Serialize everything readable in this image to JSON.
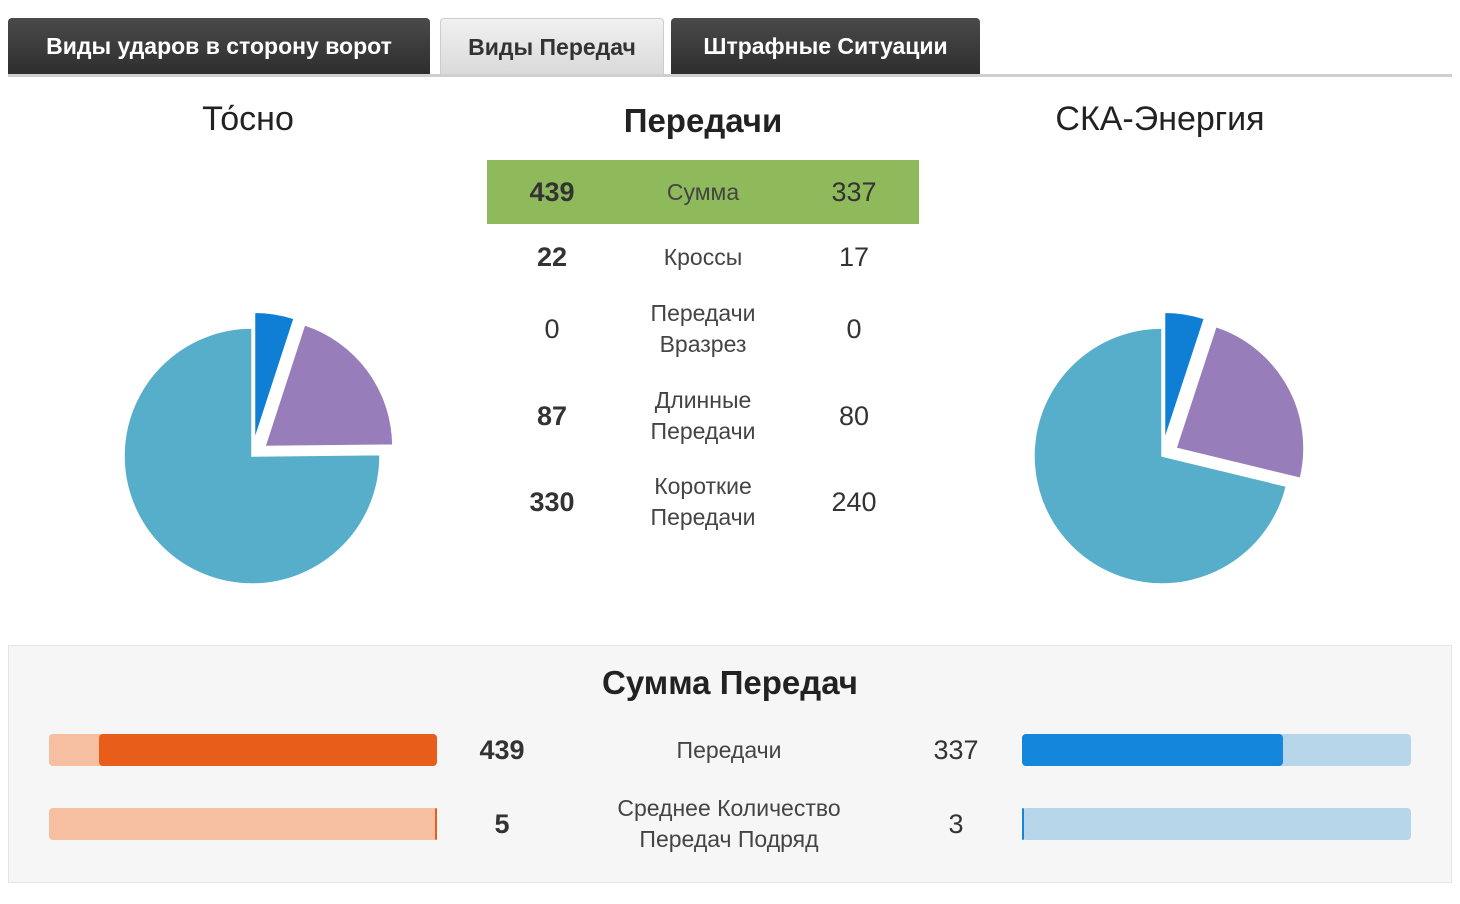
{
  "tabs": [
    {
      "label": "Виды ударов в сторону ворот",
      "active": false
    },
    {
      "label": "Виды Передач",
      "active": true
    },
    {
      "label": "Штрафные Ситуации",
      "active": false
    }
  ],
  "home_team": "То́сно",
  "away_team": "СКА-Энергия",
  "section_title": "Передачи",
  "stats": [
    {
      "home": "439",
      "label": "Сумма",
      "away": "337"
    },
    {
      "home": "22",
      "label": "Кроссы",
      "away": "17"
    },
    {
      "home": "0",
      "label": "Передачи Вразрез",
      "away": "0"
    },
    {
      "home": "87",
      "label": "Длинные Передачи",
      "away": "80"
    },
    {
      "home": "330",
      "label": "Короткие Передачи",
      "away": "240"
    }
  ],
  "chart_data": [
    {
      "type": "pie",
      "team": "То́сно",
      "slices": [
        {
          "label": "Кроссы",
          "value": 22,
          "color": "#0f7fd6"
        },
        {
          "label": "Длинные Передачи",
          "value": 87,
          "color": "#977ebb"
        },
        {
          "label": "Короткие Передачи",
          "value": 330,
          "color": "#57aecb"
        }
      ]
    },
    {
      "type": "pie",
      "team": "СКА-Энергия",
      "slices": [
        {
          "label": "Кроссы",
          "value": 17,
          "color": "#0f7fd6"
        },
        {
          "label": "Длинные Передачи",
          "value": 80,
          "color": "#977ebb"
        },
        {
          "label": "Короткие Передачи",
          "value": 240,
          "color": "#57aecb"
        }
      ]
    }
  ],
  "summary": {
    "title": "Сумма Передач",
    "rows": [
      {
        "home": "439",
        "label": "Передачи",
        "away": "337",
        "home_fraction": 0.87,
        "away_fraction": 0.67
      },
      {
        "home": "5",
        "label": "Среднее Количество Передач Подряд",
        "away": "3",
        "home_fraction": 0.005,
        "away_fraction": 0.005
      }
    ]
  },
  "colors": {
    "highlight": "#8fba5c",
    "home_bar": "#e85d1a",
    "home_track": "#f6bfa2",
    "away_bar": "#1487dd",
    "away_track": "#b8d6ea"
  }
}
